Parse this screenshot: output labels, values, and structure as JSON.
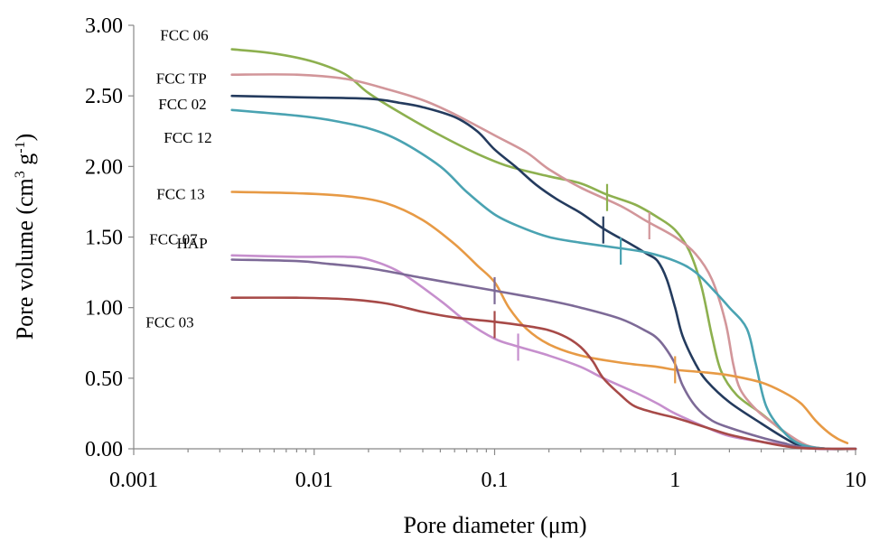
{
  "chart_data": {
    "type": "line",
    "xscale": "log",
    "xlabel": "Pore diameter (μm)",
    "ylabel": {
      "prefix": "Pore volume (cm",
      "sup1": "3",
      "mid": " g",
      "sup2": "-1",
      "suffix": ")"
    },
    "xlim": [
      0.001,
      10
    ],
    "ylim": [
      0,
      3
    ],
    "x_ticks": [
      {
        "value": 0.001,
        "label": "0.001"
      },
      {
        "value": 0.01,
        "label": "0.01"
      },
      {
        "value": 0.1,
        "label": "0.1"
      },
      {
        "value": 1,
        "label": "1"
      },
      {
        "value": 10,
        "label": "10"
      }
    ],
    "y_ticks": [
      {
        "value": 0,
        "label": "0.00"
      },
      {
        "value": 0.5,
        "label": "0.50"
      },
      {
        "value": 1,
        "label": "1.00"
      },
      {
        "value": 1.5,
        "label": "1.50"
      },
      {
        "value": 2,
        "label": "2.00"
      },
      {
        "value": 2.5,
        "label": "2.50"
      },
      {
        "value": 3,
        "label": "3.00"
      }
    ],
    "grid": false,
    "series": [
      {
        "name": "FCC 06",
        "color": "#8db04f",
        "points": [
          [
            0.0035,
            2.83
          ],
          [
            0.006,
            2.8
          ],
          [
            0.01,
            2.74
          ],
          [
            0.015,
            2.65
          ],
          [
            0.02,
            2.52
          ],
          [
            0.03,
            2.38
          ],
          [
            0.05,
            2.22
          ],
          [
            0.08,
            2.09
          ],
          [
            0.12,
            2.0
          ],
          [
            0.2,
            1.93
          ],
          [
            0.3,
            1.88
          ],
          [
            0.42,
            1.8
          ],
          [
            0.6,
            1.73
          ],
          [
            0.8,
            1.64
          ],
          [
            1.0,
            1.55
          ],
          [
            1.2,
            1.4
          ],
          [
            1.4,
            1.15
          ],
          [
            1.6,
            0.8
          ],
          [
            1.8,
            0.55
          ],
          [
            2.2,
            0.38
          ],
          [
            3.0,
            0.25
          ],
          [
            4.0,
            0.12
          ],
          [
            5.0,
            0.03
          ],
          [
            7.0,
            0.0
          ],
          [
            10,
            0.0
          ]
        ],
        "marker": {
          "x": 0.42,
          "y": 1.78
        }
      },
      {
        "name": "FCC TP",
        "color": "#d2969a",
        "points": [
          [
            0.0035,
            2.65
          ],
          [
            0.008,
            2.65
          ],
          [
            0.015,
            2.62
          ],
          [
            0.025,
            2.55
          ],
          [
            0.04,
            2.47
          ],
          [
            0.06,
            2.37
          ],
          [
            0.1,
            2.22
          ],
          [
            0.15,
            2.1
          ],
          [
            0.2,
            1.98
          ],
          [
            0.3,
            1.85
          ],
          [
            0.5,
            1.72
          ],
          [
            0.7,
            1.61
          ],
          [
            1.0,
            1.5
          ],
          [
            1.3,
            1.38
          ],
          [
            1.6,
            1.2
          ],
          [
            1.9,
            0.9
          ],
          [
            2.1,
            0.6
          ],
          [
            2.3,
            0.42
          ],
          [
            2.8,
            0.28
          ],
          [
            3.5,
            0.18
          ],
          [
            4.5,
            0.08
          ],
          [
            5.5,
            0.02
          ],
          [
            7.0,
            0.0
          ],
          [
            10,
            0.0
          ]
        ],
        "marker": {
          "x": 0.72,
          "y": 1.58
        }
      },
      {
        "name": "FCC 02",
        "color": "#243b5e",
        "points": [
          [
            0.0035,
            2.5
          ],
          [
            0.008,
            2.49
          ],
          [
            0.02,
            2.48
          ],
          [
            0.03,
            2.45
          ],
          [
            0.04,
            2.42
          ],
          [
            0.06,
            2.35
          ],
          [
            0.08,
            2.25
          ],
          [
            0.1,
            2.12
          ],
          [
            0.13,
            2.0
          ],
          [
            0.17,
            1.87
          ],
          [
            0.22,
            1.77
          ],
          [
            0.3,
            1.67
          ],
          [
            0.4,
            1.56
          ],
          [
            0.55,
            1.46
          ],
          [
            0.7,
            1.38
          ],
          [
            0.8,
            1.33
          ],
          [
            0.9,
            1.2
          ],
          [
            1.0,
            1.0
          ],
          [
            1.1,
            0.8
          ],
          [
            1.3,
            0.6
          ],
          [
            1.5,
            0.48
          ],
          [
            2.0,
            0.33
          ],
          [
            3.0,
            0.18
          ],
          [
            4.0,
            0.08
          ],
          [
            5.0,
            0.02
          ],
          [
            7.0,
            0.0
          ],
          [
            10,
            0.0
          ]
        ],
        "marker": {
          "x": 0.4,
          "y": 1.55
        }
      },
      {
        "name": "FCC 12",
        "color": "#4aa3b2",
        "points": [
          [
            0.0035,
            2.4
          ],
          [
            0.008,
            2.36
          ],
          [
            0.012,
            2.33
          ],
          [
            0.02,
            2.27
          ],
          [
            0.03,
            2.18
          ],
          [
            0.05,
            2.0
          ],
          [
            0.07,
            1.82
          ],
          [
            0.1,
            1.66
          ],
          [
            0.14,
            1.57
          ],
          [
            0.2,
            1.5
          ],
          [
            0.3,
            1.46
          ],
          [
            0.5,
            1.42
          ],
          [
            0.7,
            1.39
          ],
          [
            1.0,
            1.33
          ],
          [
            1.3,
            1.25
          ],
          [
            1.7,
            1.1
          ],
          [
            2.0,
            1.0
          ],
          [
            2.5,
            0.85
          ],
          [
            2.8,
            0.6
          ],
          [
            3.2,
            0.3
          ],
          [
            4.0,
            0.12
          ],
          [
            5.0,
            0.03
          ],
          [
            7.0,
            0.0
          ],
          [
            10,
            0.0
          ]
        ],
        "marker": {
          "x": 0.5,
          "y": 1.4
        }
      },
      {
        "name": "FCC 13",
        "color": "#e79a45",
        "points": [
          [
            0.0035,
            1.82
          ],
          [
            0.008,
            1.81
          ],
          [
            0.015,
            1.79
          ],
          [
            0.025,
            1.74
          ],
          [
            0.04,
            1.62
          ],
          [
            0.06,
            1.45
          ],
          [
            0.08,
            1.3
          ],
          [
            0.1,
            1.18
          ],
          [
            0.12,
            1.0
          ],
          [
            0.15,
            0.85
          ],
          [
            0.2,
            0.74
          ],
          [
            0.3,
            0.66
          ],
          [
            0.5,
            0.61
          ],
          [
            0.8,
            0.58
          ],
          [
            1.0,
            0.56
          ],
          [
            1.5,
            0.54
          ],
          [
            2.0,
            0.52
          ],
          [
            3.0,
            0.47
          ],
          [
            4.0,
            0.4
          ],
          [
            5.0,
            0.32
          ],
          [
            6.0,
            0.2
          ],
          [
            7.0,
            0.12
          ],
          [
            8.0,
            0.07
          ],
          [
            9.0,
            0.04
          ]
        ],
        "marker": {
          "x": 1.0,
          "y": 0.56
        }
      },
      {
        "name": "HAP",
        "color": "#c68fcd",
        "points": [
          [
            0.0035,
            1.37
          ],
          [
            0.008,
            1.36
          ],
          [
            0.015,
            1.36
          ],
          [
            0.02,
            1.34
          ],
          [
            0.03,
            1.25
          ],
          [
            0.05,
            1.05
          ],
          [
            0.07,
            0.9
          ],
          [
            0.1,
            0.78
          ],
          [
            0.13,
            0.73
          ],
          [
            0.2,
            0.66
          ],
          [
            0.3,
            0.58
          ],
          [
            0.4,
            0.5
          ],
          [
            0.6,
            0.4
          ],
          [
            0.8,
            0.32
          ],
          [
            1.0,
            0.25
          ],
          [
            1.5,
            0.15
          ],
          [
            2.0,
            0.09
          ],
          [
            3.0,
            0.05
          ],
          [
            4.0,
            0.03
          ],
          [
            6.0,
            0.0
          ],
          [
            10,
            0.0
          ]
        ],
        "marker": {
          "x": 0.135,
          "y": 0.72
        }
      },
      {
        "name": "FCC 07",
        "color": "#7d6a97",
        "points": [
          [
            0.0035,
            1.34
          ],
          [
            0.008,
            1.33
          ],
          [
            0.012,
            1.31
          ],
          [
            0.02,
            1.28
          ],
          [
            0.04,
            1.21
          ],
          [
            0.06,
            1.17
          ],
          [
            0.1,
            1.12
          ],
          [
            0.15,
            1.08
          ],
          [
            0.2,
            1.05
          ],
          [
            0.3,
            1.0
          ],
          [
            0.5,
            0.92
          ],
          [
            0.7,
            0.83
          ],
          [
            0.8,
            0.78
          ],
          [
            0.9,
            0.7
          ],
          [
            1.0,
            0.6
          ],
          [
            1.1,
            0.45
          ],
          [
            1.3,
            0.3
          ],
          [
            1.6,
            0.2
          ],
          [
            2.0,
            0.15
          ],
          [
            3.0,
            0.08
          ],
          [
            4.0,
            0.04
          ],
          [
            5.0,
            0.01
          ],
          [
            7.0,
            0.0
          ],
          [
            10,
            0.0
          ]
        ],
        "marker": {
          "x": 0.1,
          "y": 1.12
        }
      },
      {
        "name": "FCC 03",
        "color": "#a74a48",
        "points": [
          [
            0.0035,
            1.07
          ],
          [
            0.008,
            1.07
          ],
          [
            0.015,
            1.06
          ],
          [
            0.025,
            1.03
          ],
          [
            0.04,
            0.97
          ],
          [
            0.06,
            0.93
          ],
          [
            0.1,
            0.9
          ],
          [
            0.15,
            0.87
          ],
          [
            0.2,
            0.84
          ],
          [
            0.25,
            0.79
          ],
          [
            0.3,
            0.72
          ],
          [
            0.35,
            0.62
          ],
          [
            0.4,
            0.5
          ],
          [
            0.5,
            0.38
          ],
          [
            0.6,
            0.3
          ],
          [
            0.8,
            0.25
          ],
          [
            1.0,
            0.22
          ],
          [
            1.5,
            0.15
          ],
          [
            2.0,
            0.1
          ],
          [
            3.0,
            0.05
          ],
          [
            4.0,
            0.02
          ],
          [
            5.0,
            0.005
          ],
          [
            7.0,
            0.0
          ],
          [
            10,
            0.0
          ]
        ],
        "marker": {
          "x": 0.1,
          "y": 0.88
        }
      }
    ]
  }
}
